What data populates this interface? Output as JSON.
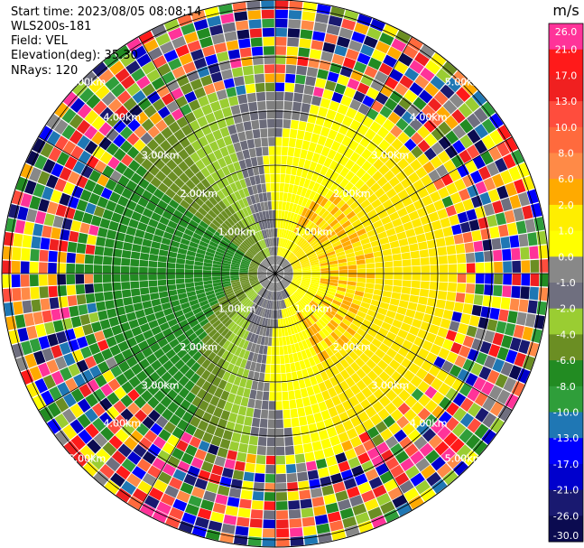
{
  "header": {
    "start_time": "Start time: 2023/08/05 08:08:14",
    "instrument": "WLS200s-181",
    "field": "Field: VEL",
    "elevation": "Elevation(deg): 35.30",
    "nrays": "NRays: 120"
  },
  "chart_data": {
    "type": "heatmap",
    "subtype": "radar-ppi",
    "field": "VEL",
    "unit": "m/s",
    "n_rays": 120,
    "range_rings_km": [
      1.0,
      2.0,
      3.0,
      4.0,
      5.0
    ],
    "range_ring_labels": [
      "1.00km",
      "2.00km",
      "3.00km",
      "4.00km",
      "5.00km"
    ],
    "colorbar": {
      "unit_label": "m/s",
      "tick_labels": [
        "26.0",
        "21.0",
        "17.0",
        "13.0",
        "10.0",
        "8.0",
        "6.0",
        "2.0",
        "1.0",
        "0.0",
        "-1.0",
        "-2.0",
        "-4.0",
        "-6.0",
        "-8.0",
        "-10.0",
        "-13.0",
        "-17.0",
        "-21.0",
        "-26.0",
        "-30.0"
      ],
      "colors": [
        "#ff3399",
        "#ff1a1a",
        "#f02020",
        "#ff4d3d",
        "#ff6a3d",
        "#ff8a47",
        "#ffaa00",
        "#ffee00",
        "#ffff00",
        "#888888",
        "#6f6f7f",
        "#9acd32",
        "#6b8e23",
        "#228b22",
        "#2f9e3a",
        "#1f77b4",
        "#0000ff",
        "#0000cd",
        "#191970",
        "#0b0b50"
      ]
    },
    "pattern": {
      "near_zero": "grey band curving around center",
      "positive": "yellow / orange on east side",
      "negative": "green / olive on west side",
      "far_range": "noisy multicolored outer rings"
    }
  },
  "colors": {
    "grey": "#808080",
    "dark_grey": "#6b6b7a",
    "yellow": "#ffff00",
    "yellow2": "#ffe800",
    "orange": "#ffaa00",
    "light_green": "#9acd32",
    "olive": "#6b8e23",
    "green": "#228b22",
    "dark_green": "#2e8b57"
  }
}
